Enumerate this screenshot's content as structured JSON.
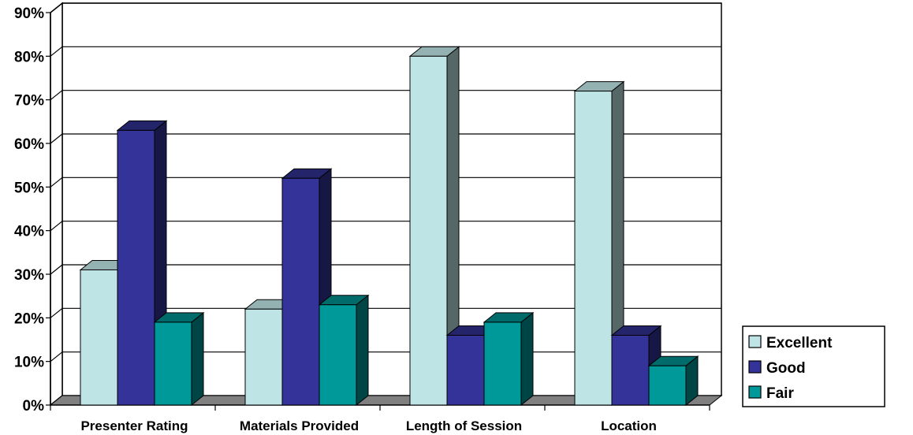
{
  "chart_data": {
    "type": "bar",
    "categories": [
      "Presenter Rating",
      "Materials Provided",
      "Length of Session",
      "Location"
    ],
    "series": [
      {
        "name": "Excellent",
        "values": [
          31,
          22,
          80,
          72
        ],
        "color": "#BFE4E6"
      },
      {
        "name": "Good",
        "values": [
          63,
          52,
          16,
          16
        ],
        "color": "#333399"
      },
      {
        "name": "Fair",
        "values": [
          19,
          23,
          19,
          9
        ],
        "color": "#009999"
      }
    ],
    "yticks": [
      "0%",
      "10%",
      "20%",
      "30%",
      "40%",
      "50%",
      "60%",
      "70%",
      "80%",
      "90%"
    ],
    "ylim": [
      0,
      90
    ],
    "grid": true,
    "legend_position": "bottom-right"
  }
}
